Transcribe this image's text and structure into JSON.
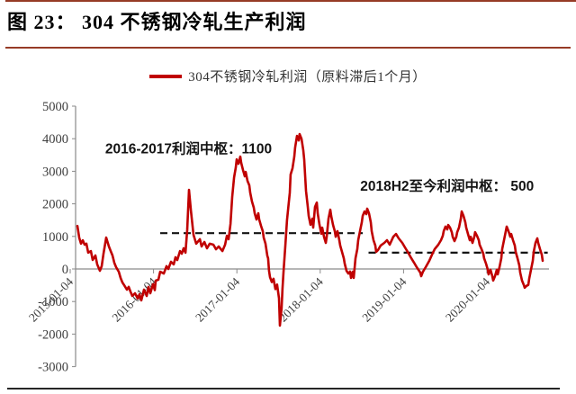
{
  "figure": {
    "title": "图 23： 304 不锈钢冷轧生产利润",
    "accent_rule_color": "#963B26",
    "bottom_rule_color": "#262626"
  },
  "legend": {
    "label": "304不锈钢冷轧利润（原料滞后1个月）",
    "swatch_color": "#C00000"
  },
  "chart_data": {
    "type": "line",
    "title": "304不锈钢冷轧生产利润",
    "xlabel": "",
    "ylabel": "",
    "ylim": [
      -3000,
      5000
    ],
    "y_ticks": [
      5000,
      4000,
      3000,
      2000,
      1000,
      0,
      -1000,
      -2000,
      -3000
    ],
    "x_ticks": [
      {
        "label": "2015-01-04",
        "t": 2015
      },
      {
        "label": "2016-01-04",
        "t": 2016
      },
      {
        "label": "2017-01-04",
        "t": 2017
      },
      {
        "label": "2018-01-04",
        "t": 2018
      },
      {
        "label": "2019-01-04",
        "t": 2019
      },
      {
        "label": "2020-01-04",
        "t": 2020
      }
    ],
    "grid": false,
    "zero_line": true,
    "legend_position": "top-center",
    "axis_color": "#8a8a8a",
    "tick_label_color": "#3d3d3d",
    "reference_lines": [
      {
        "value": 1100,
        "t_start": 2016.08,
        "t_end": 2018.51,
        "style": "dashed",
        "color": "#151515"
      },
      {
        "value": 500,
        "t_start": 2018.58,
        "t_end": 2020.73,
        "style": "dashed",
        "color": "#151515"
      }
    ],
    "annotations": [
      {
        "text": "2016-2017利润中枢：1100",
        "t": 2015.42,
        "value": 3550
      },
      {
        "text": "2018H2至今利润中枢： 500",
        "t": 2018.48,
        "value": 2400
      }
    ],
    "series": [
      {
        "name": "304不锈钢冷轧利润（原料滞后1个月）",
        "color": "#C00000",
        "x_unit": "decimal-year",
        "points": [
          [
            2015.086,
            1320
          ],
          [
            2015.108,
            965
          ],
          [
            2015.13,
            775
          ],
          [
            2015.151,
            880
          ],
          [
            2015.173,
            745
          ],
          [
            2015.194,
            775
          ],
          [
            2015.216,
            500
          ],
          [
            2015.248,
            550
          ],
          [
            2015.27,
            275
          ],
          [
            2015.302,
            415
          ],
          [
            2015.324,
            140
          ],
          [
            2015.356,
            -55
          ],
          [
            2015.378,
            85
          ],
          [
            2015.4,
            470
          ],
          [
            2015.432,
            965
          ],
          [
            2015.464,
            690
          ],
          [
            2015.486,
            550
          ],
          [
            2015.508,
            415
          ],
          [
            2015.529,
            190
          ],
          [
            2015.551,
            55
          ],
          [
            2015.583,
            -85
          ],
          [
            2015.605,
            -275
          ],
          [
            2015.626,
            -415
          ],
          [
            2015.648,
            -500
          ],
          [
            2015.68,
            -635
          ],
          [
            2015.702,
            -550
          ],
          [
            2015.723,
            -690
          ],
          [
            2015.745,
            -830
          ],
          [
            2015.778,
            -745
          ],
          [
            2015.81,
            -910
          ],
          [
            2015.832,
            -775
          ],
          [
            2015.853,
            -965
          ],
          [
            2015.885,
            -635
          ],
          [
            2015.918,
            -830
          ],
          [
            2015.94,
            -550
          ],
          [
            2015.961,
            -745
          ],
          [
            2015.993,
            -470
          ],
          [
            2016.015,
            -650
          ],
          [
            2016.026,
            -360
          ],
          [
            2016.058,
            -330
          ],
          [
            2016.08,
            -85
          ],
          [
            2016.123,
            -140
          ],
          [
            2016.156,
            85
          ],
          [
            2016.177,
            0
          ],
          [
            2016.21,
            220
          ],
          [
            2016.242,
            140
          ],
          [
            2016.264,
            360
          ],
          [
            2016.285,
            275
          ],
          [
            2016.318,
            550
          ],
          [
            2016.339,
            470
          ],
          [
            2016.361,
            635
          ],
          [
            2016.383,
            500
          ],
          [
            2016.404,
            1200
          ],
          [
            2016.426,
            2430
          ],
          [
            2016.448,
            1800
          ],
          [
            2016.48,
            1050
          ],
          [
            2016.512,
            775
          ],
          [
            2016.556,
            915
          ],
          [
            2016.577,
            690
          ],
          [
            2016.61,
            830
          ],
          [
            2016.642,
            635
          ],
          [
            2016.674,
            775
          ],
          [
            2016.718,
            745
          ],
          [
            2016.75,
            605
          ],
          [
            2016.782,
            690
          ],
          [
            2016.826,
            550
          ],
          [
            2016.858,
            745
          ],
          [
            2016.88,
            1020
          ],
          [
            2016.901,
            915
          ],
          [
            2016.923,
            1380
          ],
          [
            2016.944,
            2210
          ],
          [
            2016.966,
            2815
          ],
          [
            2016.987,
            3120
          ],
          [
            2016.998,
            3365
          ],
          [
            2017.019,
            3230
          ],
          [
            2017.041,
            3450
          ],
          [
            2017.052,
            3260
          ],
          [
            2017.073,
            3040
          ],
          [
            2017.095,
            2845
          ],
          [
            2017.106,
            2980
          ],
          [
            2017.127,
            2705
          ],
          [
            2017.149,
            2570
          ],
          [
            2017.16,
            2345
          ],
          [
            2017.181,
            2070
          ],
          [
            2017.203,
            1880
          ],
          [
            2017.214,
            1710
          ],
          [
            2017.235,
            1520
          ],
          [
            2017.257,
            1710
          ],
          [
            2017.268,
            1520
          ],
          [
            2017.289,
            1325
          ],
          [
            2017.311,
            1160
          ],
          [
            2017.322,
            965
          ],
          [
            2017.343,
            775
          ],
          [
            2017.365,
            410
          ],
          [
            2017.375,
            330
          ],
          [
            2017.386,
            -50
          ],
          [
            2017.397,
            -250
          ],
          [
            2017.419,
            -400
          ],
          [
            2017.44,
            -300
          ],
          [
            2017.462,
            -620
          ],
          [
            2017.483,
            -480
          ],
          [
            2017.505,
            -900
          ],
          [
            2017.516,
            -1740
          ],
          [
            2017.537,
            -1200
          ],
          [
            2017.548,
            -600
          ],
          [
            2017.559,
            -100
          ],
          [
            2017.581,
            700
          ],
          [
            2017.602,
            1500
          ],
          [
            2017.635,
            2345
          ],
          [
            2017.645,
            2900
          ],
          [
            2017.667,
            3090
          ],
          [
            2017.689,
            3450
          ],
          [
            2017.699,
            3725
          ],
          [
            2017.721,
            4085
          ],
          [
            2017.743,
            3945
          ],
          [
            2017.753,
            4140
          ],
          [
            2017.775,
            4000
          ],
          [
            2017.797,
            3640
          ],
          [
            2017.808,
            3365
          ],
          [
            2017.829,
            2400
          ],
          [
            2017.851,
            1905
          ],
          [
            2017.862,
            1630
          ],
          [
            2017.883,
            1355
          ],
          [
            2017.905,
            1545
          ],
          [
            2017.916,
            1270
          ],
          [
            2017.937,
            1905
          ],
          [
            2017.959,
            2040
          ],
          [
            2017.97,
            1710
          ],
          [
            2017.991,
            1355
          ],
          [
            2018.013,
            1080
          ],
          [
            2018.024,
            1270
          ],
          [
            2018.045,
            990
          ],
          [
            2018.067,
            800
          ],
          [
            2018.078,
            990
          ],
          [
            2018.099,
            1545
          ],
          [
            2018.121,
            1820
          ],
          [
            2018.132,
            1630
          ],
          [
            2018.153,
            1355
          ],
          [
            2018.175,
            1160
          ],
          [
            2018.186,
            990
          ],
          [
            2018.207,
            1160
          ],
          [
            2018.229,
            885
          ],
          [
            2018.24,
            720
          ],
          [
            2018.261,
            525
          ],
          [
            2018.283,
            330
          ],
          [
            2018.294,
            165
          ],
          [
            2018.315,
            -55
          ],
          [
            2018.337,
            -140
          ],
          [
            2018.359,
            -80
          ],
          [
            2018.369,
            -275
          ],
          [
            2018.391,
            -85
          ],
          [
            2018.402,
            -275
          ],
          [
            2018.423,
            330
          ],
          [
            2018.445,
            610
          ],
          [
            2018.456,
            885
          ],
          [
            2018.477,
            1160
          ],
          [
            2018.499,
            1435
          ],
          [
            2018.51,
            1630
          ],
          [
            2018.531,
            1765
          ],
          [
            2018.553,
            1685
          ],
          [
            2018.564,
            1850
          ],
          [
            2018.585,
            1710
          ],
          [
            2018.607,
            1435
          ],
          [
            2018.618,
            1160
          ],
          [
            2018.639,
            885
          ],
          [
            2018.661,
            720
          ],
          [
            2018.672,
            525
          ],
          [
            2018.693,
            580
          ],
          [
            2018.726,
            720
          ],
          [
            2018.769,
            800
          ],
          [
            2018.801,
            885
          ],
          [
            2018.834,
            745
          ],
          [
            2018.877,
            990
          ],
          [
            2018.909,
            1075
          ],
          [
            2018.942,
            940
          ],
          [
            2018.985,
            800
          ],
          [
            2019.017,
            660
          ],
          [
            2019.05,
            525
          ],
          [
            2019.093,
            330
          ],
          [
            2019.125,
            195
          ],
          [
            2019.158,
            55
          ],
          [
            2019.201,
            -110
          ],
          [
            2019.212,
            -220
          ],
          [
            2019.233,
            -80
          ],
          [
            2019.266,
            55
          ],
          [
            2019.309,
            250
          ],
          [
            2019.341,
            440
          ],
          [
            2019.374,
            610
          ],
          [
            2019.417,
            745
          ],
          [
            2019.449,
            885
          ],
          [
            2019.471,
            1020
          ],
          [
            2019.482,
            1160
          ],
          [
            2019.503,
            1300
          ],
          [
            2019.525,
            1215
          ],
          [
            2019.536,
            1350
          ],
          [
            2019.557,
            1270
          ],
          [
            2019.579,
            1130
          ],
          [
            2019.59,
            990
          ],
          [
            2019.611,
            855
          ],
          [
            2019.633,
            990
          ],
          [
            2019.644,
            1130
          ],
          [
            2019.665,
            1270
          ],
          [
            2019.687,
            1545
          ],
          [
            2019.698,
            1765
          ],
          [
            2019.719,
            1630
          ],
          [
            2019.741,
            1435
          ],
          [
            2019.752,
            1270
          ],
          [
            2019.773,
            1075
          ],
          [
            2019.795,
            885
          ],
          [
            2019.806,
            990
          ],
          [
            2019.827,
            800
          ],
          [
            2019.849,
            990
          ],
          [
            2019.859,
            1130
          ],
          [
            2019.881,
            1020
          ],
          [
            2019.903,
            885
          ],
          [
            2019.913,
            745
          ],
          [
            2019.935,
            610
          ],
          [
            2019.957,
            470
          ],
          [
            2019.967,
            330
          ],
          [
            2019.989,
            165
          ],
          [
            2020.011,
            -25
          ],
          [
            2020.021,
            -165
          ],
          [
            2020.043,
            -25
          ],
          [
            2020.065,
            -220
          ],
          [
            2020.076,
            -355
          ],
          [
            2020.097,
            -220
          ],
          [
            2020.119,
            -25
          ],
          [
            2020.13,
            -165
          ],
          [
            2020.151,
            55
          ],
          [
            2020.173,
            330
          ],
          [
            2020.184,
            610
          ],
          [
            2020.205,
            885
          ],
          [
            2020.227,
            1160
          ],
          [
            2020.238,
            1300
          ],
          [
            2020.259,
            1160
          ],
          [
            2020.281,
            990
          ],
          [
            2020.292,
            1075
          ],
          [
            2020.313,
            885
          ],
          [
            2020.335,
            720
          ],
          [
            2020.346,
            525
          ],
          [
            2020.367,
            330
          ],
          [
            2020.389,
            110
          ],
          [
            2020.4,
            -110
          ],
          [
            2020.421,
            -355
          ],
          [
            2020.443,
            -490
          ],
          [
            2020.454,
            -575
          ],
          [
            2020.475,
            -520
          ],
          [
            2020.497,
            -490
          ],
          [
            2020.508,
            -300
          ],
          [
            2020.529,
            -25
          ],
          [
            2020.551,
            250
          ],
          [
            2020.562,
            525
          ],
          [
            2020.583,
            800
          ],
          [
            2020.605,
            940
          ],
          [
            2020.616,
            800
          ],
          [
            2020.637,
            610
          ],
          [
            2020.659,
            440
          ],
          [
            2020.67,
            250
          ]
        ]
      }
    ]
  }
}
